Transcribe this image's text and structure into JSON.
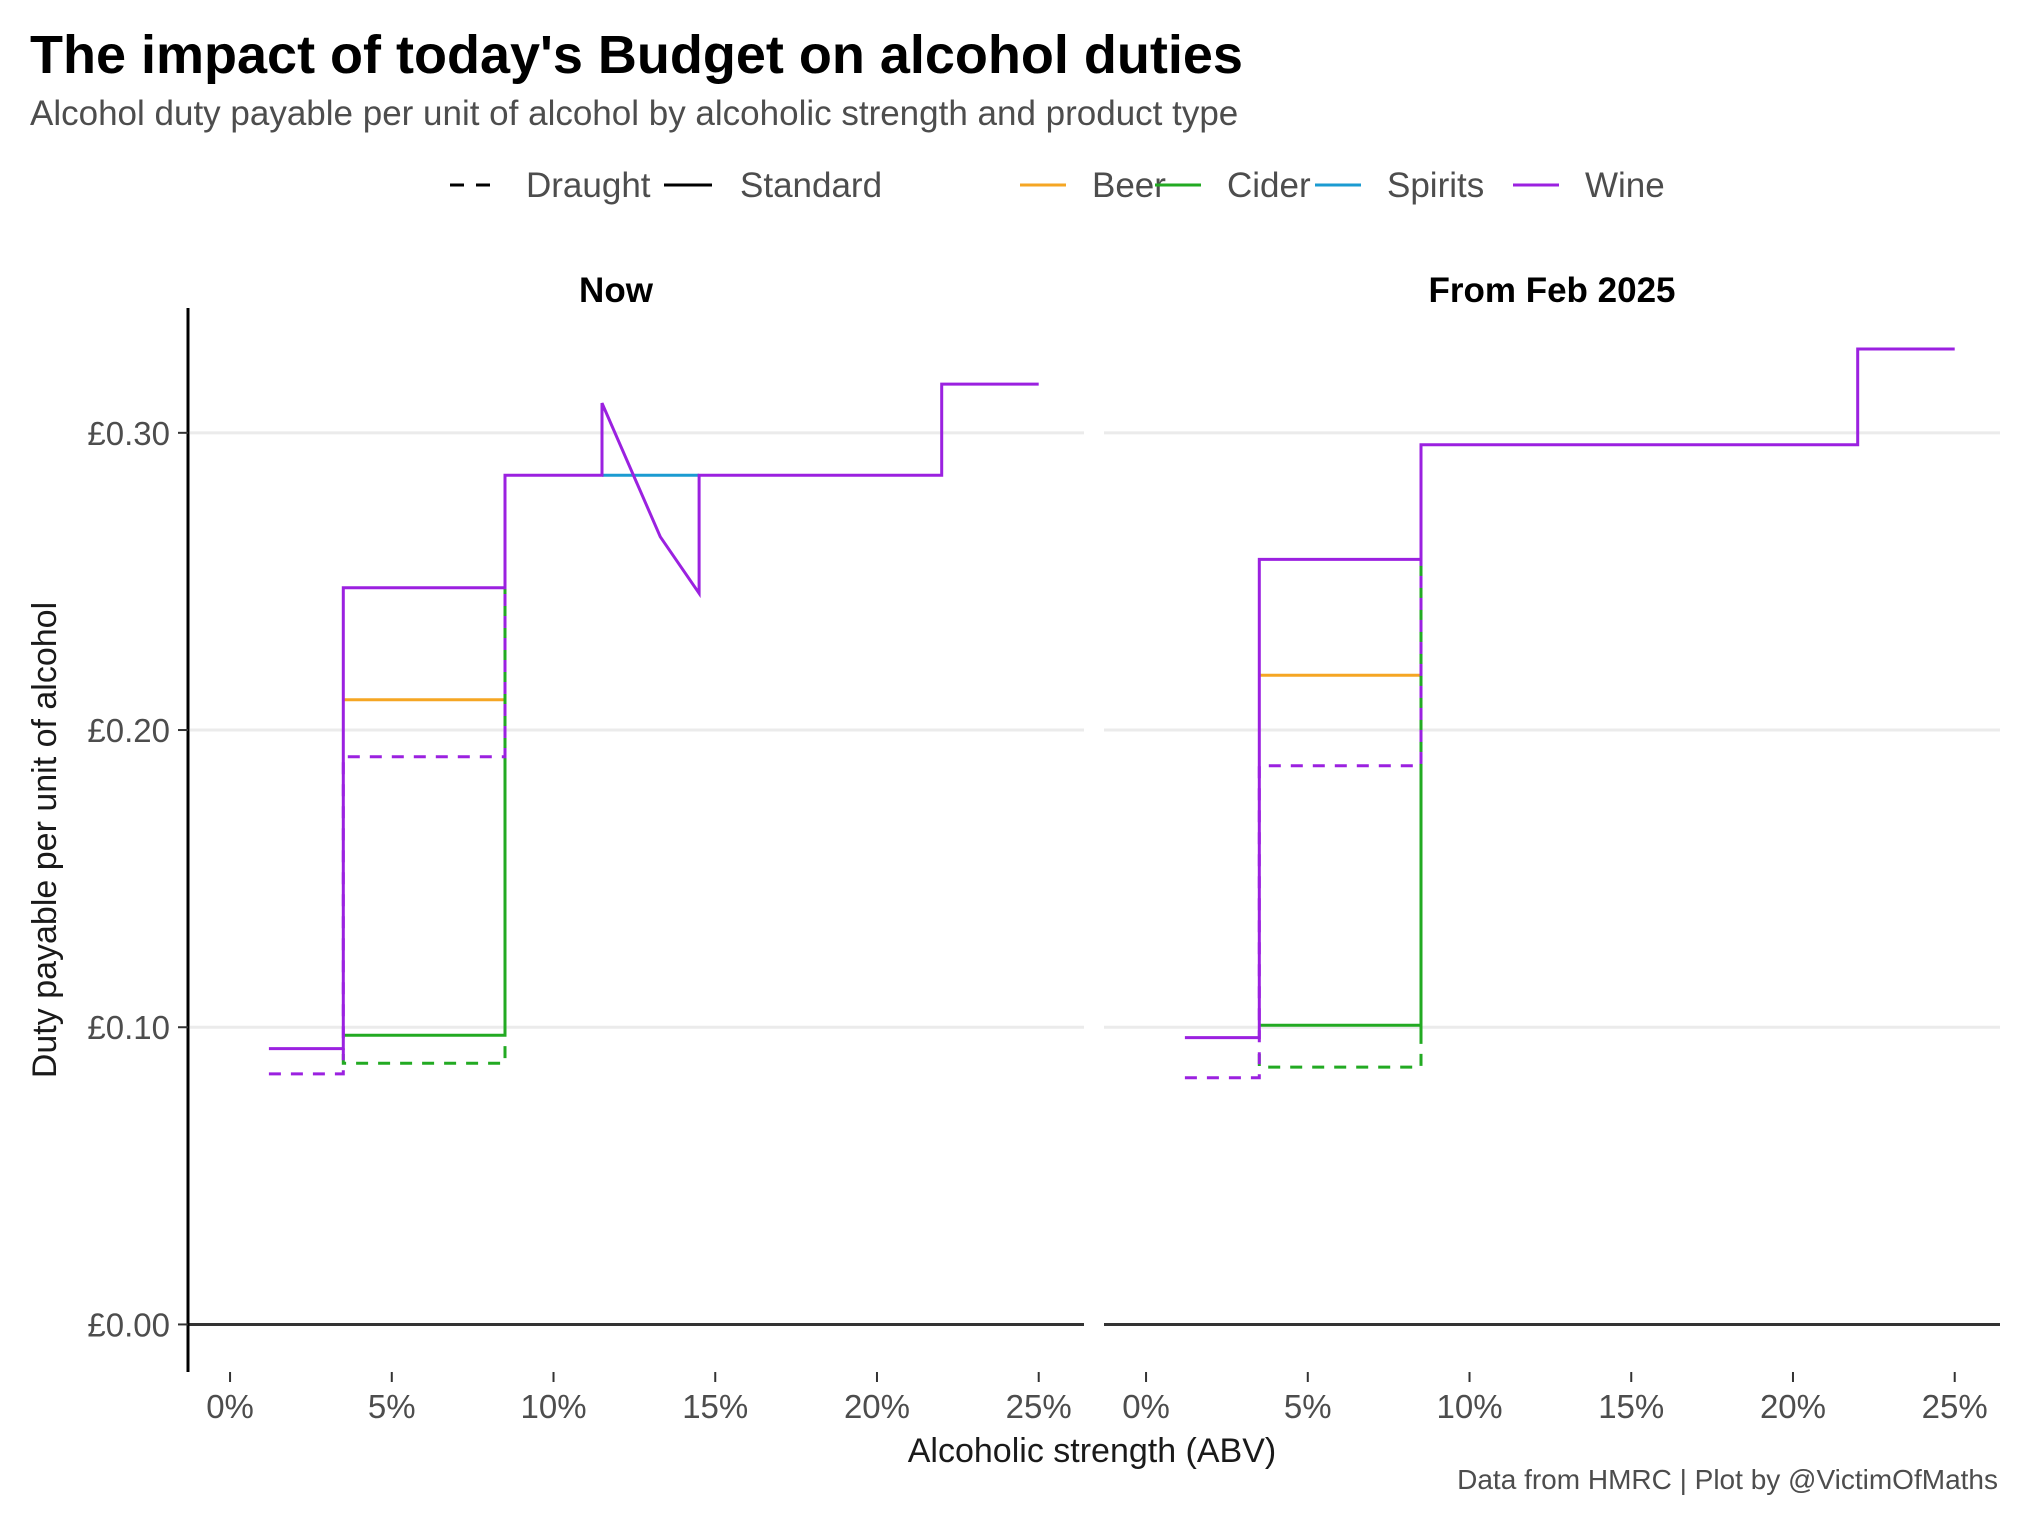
{
  "header": {
    "title": "The impact of today's Budget on alcohol duties",
    "subtitle": "Alcohol duty payable per unit of alcohol by alcoholic strength and product type",
    "caption": "Data from HMRC | Plot by @VictimOfMaths"
  },
  "chart_data": {
    "type": "line",
    "ylabel": "Duty payable per unit of alcohol",
    "xlabel": "Alcoholic strength (ABV)",
    "x_ticks": [
      "0%",
      "5%",
      "10%",
      "15%",
      "20%",
      "25%"
    ],
    "x_tick_values": [
      0,
      5,
      10,
      15,
      20,
      25
    ],
    "y_ticks": [
      "£0.00",
      "£0.10",
      "£0.20",
      "£0.30"
    ],
    "y_tick_values": [
      0,
      0.1,
      0.2,
      0.3
    ],
    "xlim": [
      -1.3,
      26.4
    ],
    "ylim": [
      -0.016,
      0.342
    ],
    "grid": "horizontal",
    "legend_position": "top",
    "legend": {
      "linetype": [
        {
          "label": "Draught",
          "dash": true
        },
        {
          "label": "Standard",
          "dash": false
        }
      ],
      "product": [
        {
          "label": "Beer",
          "color": "#F5A623"
        },
        {
          "label": "Cider",
          "color": "#22AA22"
        },
        {
          "label": "Spirits",
          "color": "#1B9BD1"
        },
        {
          "label": "Wine",
          "color": "#9B21E0"
        }
      ]
    },
    "panels": [
      {
        "title": "Now",
        "series": [
          {
            "product": "Beer",
            "type": "Standard",
            "x": [
              3.5,
              8.5
            ],
            "y": [
              0.2102,
              0.2102
            ]
          },
          {
            "product": "Spirits",
            "type": "Standard",
            "x": [
              11.5,
              14.5
            ],
            "y": [
              0.2857,
              0.2857
            ]
          },
          {
            "product": "Cider",
            "type": "Draught",
            "x": [
              3.5,
              3.5,
              8.5,
              8.5,
              8.5,
              8.5
            ],
            "y": [
              0.091,
              0.0879,
              0.0879,
              0.091,
              0.191,
              0.2857
            ]
          },
          {
            "product": "Cider",
            "type": "Standard",
            "x": [
              3.5,
              8.5,
              8.5,
              8.5
            ],
            "y": [
              0.0973,
              0.0973,
              0.2,
              0.2857
            ]
          },
          {
            "product": "Wine",
            "type": "Draught",
            "x": [
              1.2,
              3.5,
              3.5,
              8.5,
              8.5
            ],
            "y": [
              0.0843,
              0.0843,
              0.191,
              0.191,
              0.2857
            ]
          },
          {
            "product": "Wine",
            "type": "Standard",
            "x": [
              1.2,
              3.5,
              3.5,
              8.5,
              8.5,
              11.5,
              11.5,
              13.3,
              14.5,
              14.5,
              22.0,
              22.0,
              25.0
            ],
            "y": [
              0.0928,
              0.0928,
              0.2479,
              0.2479,
              0.2857,
              0.2857,
              0.31,
              0.265,
              0.246,
              0.2857,
              0.2857,
              0.3164,
              0.3164
            ]
          }
        ]
      },
      {
        "title": "From Feb 2025",
        "series": [
          {
            "product": "Beer",
            "type": "Standard",
            "x": [
              3.5,
              8.5
            ],
            "y": [
              0.2184,
              0.2184
            ]
          },
          {
            "product": "Cider",
            "type": "Draught",
            "x": [
              3.5,
              3.5,
              8.5,
              8.5,
              8.5,
              8.5
            ],
            "y": [
              0.091,
              0.0866,
              0.0866,
              0.091,
              0.188,
              0.296
            ]
          },
          {
            "product": "Cider",
            "type": "Standard",
            "x": [
              3.5,
              8.5,
              8.5,
              8.5
            ],
            "y": [
              0.1007,
              0.1007,
              0.095,
              0.296
            ]
          },
          {
            "product": "Wine",
            "type": "Draught",
            "x": [
              1.2,
              3.5,
              3.5,
              8.5,
              8.5
            ],
            "y": [
              0.083,
              0.083,
              0.188,
              0.188,
              0.296
            ]
          },
          {
            "product": "Wine",
            "type": "Standard",
            "x": [
              1.2,
              3.5,
              3.5,
              8.5,
              8.5,
              22.0,
              22.0,
              25.0
            ],
            "y": [
              0.0965,
              0.0965,
              0.2574,
              0.2574,
              0.296,
              0.296,
              0.3282,
              0.3282
            ]
          }
        ]
      }
    ]
  }
}
